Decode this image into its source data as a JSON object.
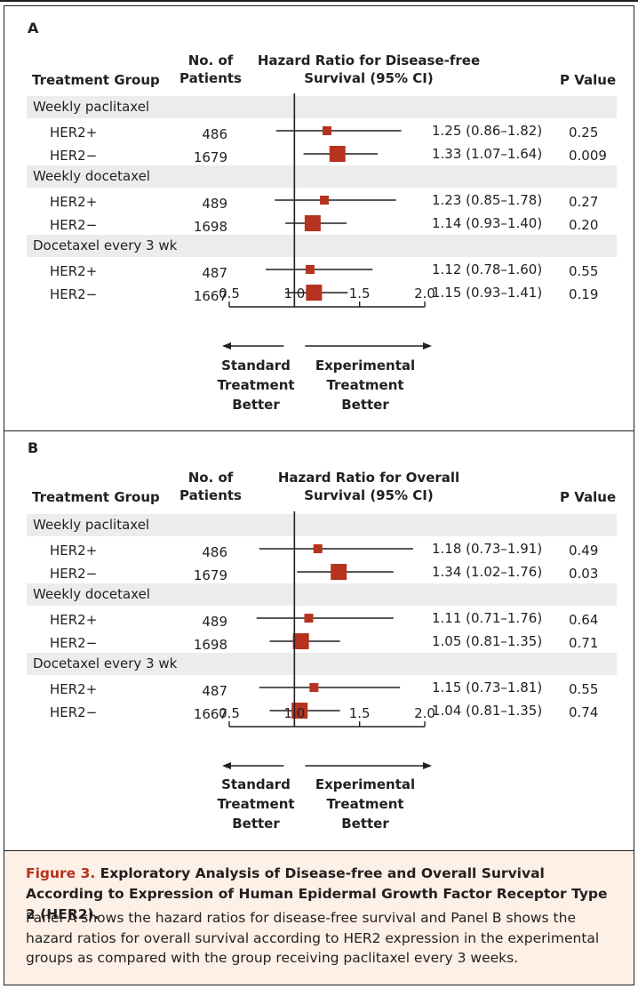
{
  "panels": [
    {
      "letter": "A",
      "headers": {
        "group": "Treatment Group",
        "patients_line1": "No. of",
        "patients_line2": "Patients",
        "hr_line1": "Hazard Ratio for Disease-free",
        "hr_line2": "Survival (95% CI)",
        "p": "P Value"
      },
      "axis_label_left": [
        "Standard",
        "Treatment",
        "Better"
      ],
      "axis_label_right": [
        "Experimental",
        "Treatment",
        "Better"
      ]
    },
    {
      "letter": "B",
      "headers": {
        "group": "Treatment Group",
        "patients_line1": "No. of",
        "patients_line2": "Patients",
        "hr_line1": "Hazard Ratio for Overall",
        "hr_line2": "Survival (95% CI)",
        "p": "P Value"
      },
      "axis_label_left": [
        "Standard",
        "Treatment",
        "Better"
      ],
      "axis_label_right": [
        "Experimental",
        "Treatment",
        "Better"
      ]
    }
  ],
  "chart_data": [
    {
      "type": "forest",
      "xlim": [
        0.5,
        2.0
      ],
      "ticks": [
        "0.5",
        "1.0",
        "1.5",
        "2.0"
      ],
      "reference_line": 1.0,
      "rows": [
        {
          "kind": "group",
          "label": "Weekly paclitaxel"
        },
        {
          "kind": "item",
          "label": "HER2+",
          "n": "486",
          "hr": 1.25,
          "lo": 0.86,
          "hi": 1.82,
          "text": "1.25 (0.86–1.82)",
          "p": "0.25"
        },
        {
          "kind": "item",
          "label": "HER2−",
          "n": "1679",
          "hr": 1.33,
          "lo": 1.07,
          "hi": 1.64,
          "text": "1.33 (1.07–1.64)",
          "p": "0.009"
        },
        {
          "kind": "group",
          "label": "Weekly docetaxel"
        },
        {
          "kind": "item",
          "label": "HER2+",
          "n": "489",
          "hr": 1.23,
          "lo": 0.85,
          "hi": 1.78,
          "text": "1.23 (0.85–1.78)",
          "p": "0.27"
        },
        {
          "kind": "item",
          "label": "HER2−",
          "n": "1698",
          "hr": 1.14,
          "lo": 0.93,
          "hi": 1.4,
          "text": "1.14 (0.93–1.40)",
          "p": "0.20"
        },
        {
          "kind": "group",
          "label": "Docetaxel every 3 wk"
        },
        {
          "kind": "item",
          "label": "HER2+",
          "n": "487",
          "hr": 1.12,
          "lo": 0.78,
          "hi": 1.6,
          "text": "1.12 (0.78–1.60)",
          "p": "0.55"
        },
        {
          "kind": "item",
          "label": "HER2−",
          "n": "1667",
          "hr": 1.15,
          "lo": 0.93,
          "hi": 1.41,
          "text": "1.15 (0.93–1.41)",
          "p": "0.19"
        }
      ]
    },
    {
      "type": "forest",
      "xlim": [
        0.5,
        2.0
      ],
      "ticks": [
        "0.5",
        "1.0",
        "1.5",
        "2.0"
      ],
      "reference_line": 1.0,
      "rows": [
        {
          "kind": "group",
          "label": "Weekly paclitaxel"
        },
        {
          "kind": "item",
          "label": "HER2+",
          "n": "486",
          "hr": 1.18,
          "lo": 0.73,
          "hi": 1.91,
          "text": "1.18 (0.73–1.91)",
          "p": "0.49"
        },
        {
          "kind": "item",
          "label": "HER2−",
          "n": "1679",
          "hr": 1.34,
          "lo": 1.02,
          "hi": 1.76,
          "text": "1.34 (1.02–1.76)",
          "p": "0.03"
        },
        {
          "kind": "group",
          "label": "Weekly docetaxel"
        },
        {
          "kind": "item",
          "label": "HER2+",
          "n": "489",
          "hr": 1.11,
          "lo": 0.71,
          "hi": 1.76,
          "text": "1.11 (0.71–1.76)",
          "p": "0.64"
        },
        {
          "kind": "item",
          "label": "HER2−",
          "n": "1698",
          "hr": 1.05,
          "lo": 0.81,
          "hi": 1.35,
          "text": "1.05 (0.81–1.35)",
          "p": "0.71"
        },
        {
          "kind": "group",
          "label": "Docetaxel every 3 wk"
        },
        {
          "kind": "item",
          "label": "HER2+",
          "n": "487",
          "hr": 1.15,
          "lo": 0.73,
          "hi": 1.81,
          "text": "1.15 (0.73–1.81)",
          "p": "0.55"
        },
        {
          "kind": "item",
          "label": "HER2−",
          "n": "1667",
          "hr": 1.04,
          "lo": 0.81,
          "hi": 1.35,
          "text": "1.04 (0.81–1.35)",
          "p": "0.74"
        }
      ]
    }
  ],
  "caption": {
    "figure_label": "Figure 3.",
    "title": "Exploratory Analysis of Disease-free and Overall Survival According to Expression of Human Epidermal Growth Factor Receptor Type 2 (HER2).",
    "body": "Panel A shows the hazard ratios for disease-free survival and Panel B shows the hazard ratios for overall survival according to HER2 expression in the experimental groups as compared with the group receiving paclitaxel every 3 weeks."
  },
  "colors": {
    "marker": "#b5331f",
    "band": "#ececec",
    "caption_bg": "#fdf0e6",
    "figure_label": "#b5331f"
  }
}
